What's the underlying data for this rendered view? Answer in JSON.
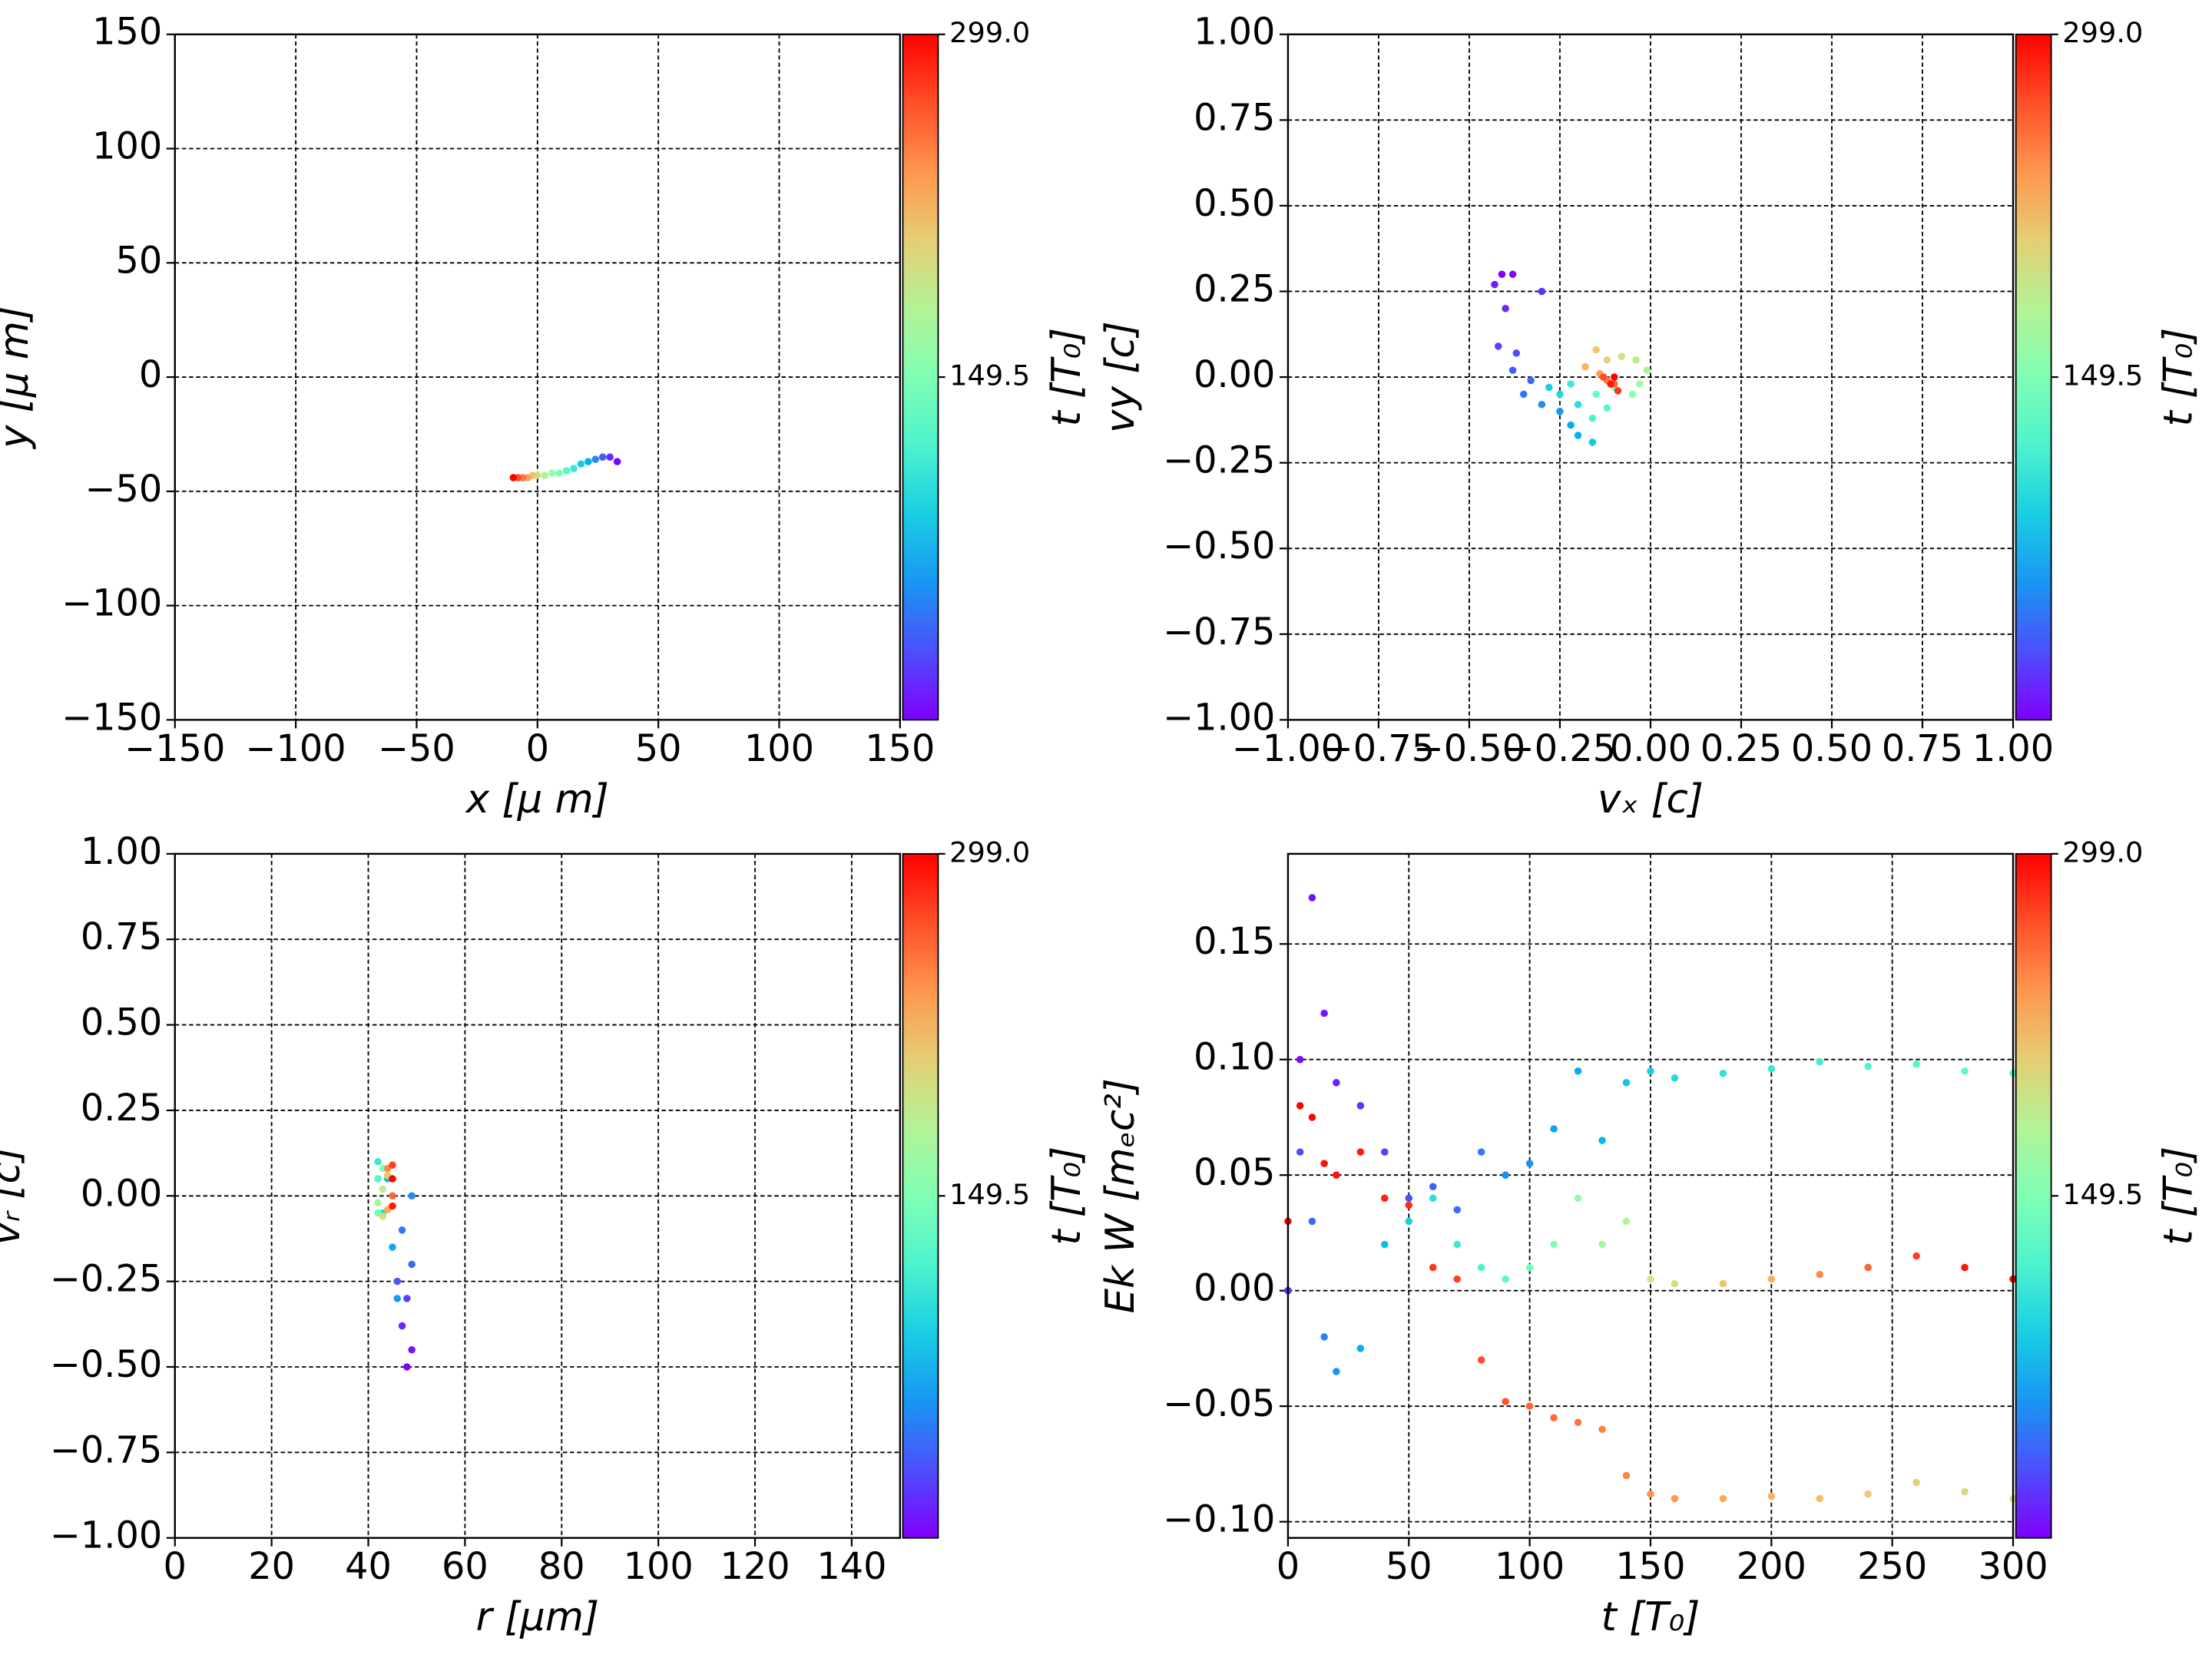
{
  "chart_data": [
    {
      "type": "scatter",
      "xlabel": "x  [μ m]",
      "ylabel": "y  [μ m]",
      "colorbar_label": "t [T₀]",
      "colormap": "rainbow",
      "grid": true,
      "xlim": [
        -150,
        150
      ],
      "ylim": [
        -150,
        150
      ],
      "xticks": [
        {
          "value": -150,
          "label": "−150"
        },
        {
          "value": -100,
          "label": "−100"
        },
        {
          "value": -50,
          "label": "−50"
        },
        0,
        50,
        100,
        150
      ],
      "yticks": [
        {
          "value": -150,
          "label": "−150"
        },
        {
          "value": -100,
          "label": "−100"
        },
        {
          "value": -50,
          "label": "−50"
        },
        0,
        50,
        100,
        150
      ],
      "clim": [
        0,
        299
      ],
      "colorbar_ticks": [
        149.5,
        {
          "value": 299,
          "label": "299.0"
        }
      ],
      "series": [
        {
          "x": [
            33,
            30,
            27,
            24,
            21,
            18,
            15,
            12,
            9,
            6,
            3,
            0,
            -2,
            -4,
            -6,
            -8,
            -10
          ],
          "values": [
            -37,
            -35,
            -35,
            -36,
            -37,
            -38,
            -40,
            -41,
            -42,
            -42,
            -43,
            -43,
            -43,
            -44,
            -44,
            -44,
            -44
          ],
          "c": [
            0,
            18,
            36,
            54,
            72,
            90,
            108,
            126,
            144,
            162,
            180,
            198,
            216,
            234,
            252,
            270,
            299
          ]
        }
      ]
    },
    {
      "type": "scatter",
      "xlabel": "vₓ [c]",
      "ylabel": "vy [c]",
      "colorbar_label": "t [T₀]",
      "colormap": "rainbow",
      "grid": true,
      "xlim": [
        -1,
        1
      ],
      "ylim": [
        -1,
        1
      ],
      "xticks": [
        {
          "value": -1,
          "label": "−1.00"
        },
        {
          "value": -0.75,
          "label": "−0.75"
        },
        {
          "value": -0.5,
          "label": "−0.50"
        },
        {
          "value": -0.25,
          "label": "−0.25"
        },
        {
          "value": 0,
          "label": "0.00"
        },
        {
          "value": 0.25,
          "label": "0.25"
        },
        {
          "value": 0.5,
          "label": "0.50"
        },
        {
          "value": 0.75,
          "label": "0.75"
        },
        {
          "value": 1,
          "label": "1.00"
        }
      ],
      "yticks": [
        {
          "value": -1,
          "label": "−1.00"
        },
        {
          "value": -0.75,
          "label": "−0.75"
        },
        {
          "value": -0.5,
          "label": "−0.50"
        },
        {
          "value": -0.25,
          "label": "−0.25"
        },
        {
          "value": 0,
          "label": "0.00"
        },
        {
          "value": 0.25,
          "label": "0.25"
        },
        {
          "value": 0.5,
          "label": "0.50"
        },
        {
          "value": 0.75,
          "label": "0.75"
        },
        {
          "value": 1,
          "label": "1.00"
        }
      ],
      "clim": [
        0,
        299
      ],
      "colorbar_ticks": [
        149.5,
        {
          "value": 299,
          "label": "299.0"
        }
      ],
      "series": [
        {
          "x": [
            -0.41,
            -0.38,
            -0.43,
            -0.4,
            -0.3,
            -0.42,
            -0.37,
            -0.38,
            -0.33,
            -0.35,
            -0.3,
            -0.25,
            -0.22,
            -0.2,
            -0.16,
            -0.28,
            -0.25,
            -0.2,
            -0.22,
            -0.16,
            -0.12,
            -0.15,
            -0.1,
            -0.05,
            -0.03,
            -0.01,
            -0.04,
            -0.08,
            -0.12,
            -0.15,
            -0.18,
            -0.14,
            -0.12,
            -0.1,
            -0.13,
            -0.09,
            -0.11,
            -0.1
          ],
          "values": [
            0.3,
            0.3,
            0.27,
            0.2,
            0.25,
            0.09,
            0.07,
            0.02,
            -0.01,
            -0.05,
            -0.08,
            -0.1,
            -0.14,
            -0.17,
            -0.19,
            -0.03,
            -0.05,
            -0.08,
            -0.02,
            -0.12,
            -0.09,
            -0.05,
            -0.03,
            -0.05,
            -0.02,
            0.02,
            0.05,
            0.06,
            0.05,
            0.08,
            0.03,
            0.01,
            -0.01,
            -0.02,
            0,
            -0.04,
            -0.02,
            0
          ],
          "c": [
            0,
            5,
            10,
            15,
            20,
            25,
            30,
            35,
            40,
            45,
            55,
            60,
            70,
            75,
            85,
            90,
            95,
            100,
            110,
            120,
            125,
            135,
            145,
            155,
            165,
            175,
            185,
            195,
            205,
            215,
            225,
            235,
            250,
            260,
            270,
            280,
            290,
            299
          ]
        }
      ]
    },
    {
      "type": "scatter",
      "xlabel": "r [μm]",
      "ylabel": "vᵣ [c]",
      "colorbar_label": "t [T₀]",
      "colormap": "rainbow",
      "grid": true,
      "xlim": [
        0,
        150
      ],
      "ylim": [
        -1,
        1
      ],
      "xticks": [
        0,
        20,
        40,
        60,
        80,
        100,
        120,
        140
      ],
      "yticks": [
        {
          "value": -1,
          "label": "−1.00"
        },
        {
          "value": -0.75,
          "label": "−0.75"
        },
        {
          "value": -0.5,
          "label": "−0.50"
        },
        {
          "value": -0.25,
          "label": "−0.25"
        },
        {
          "value": 0,
          "label": "0.00"
        },
        {
          "value": 0.25,
          "label": "0.25"
        },
        {
          "value": 0.5,
          "label": "0.50"
        },
        {
          "value": 0.75,
          "label": "0.75"
        },
        {
          "value": 1,
          "label": "1.00"
        }
      ],
      "clim": [
        0,
        299
      ],
      "colorbar_ticks": [
        149.5,
        {
          "value": 299,
          "label": "299.0"
        }
      ],
      "series": [
        {
          "x": [
            48,
            49,
            47,
            48,
            46,
            49,
            47,
            49,
            46,
            45,
            44,
            43,
            42,
            42,
            42,
            43,
            42,
            43,
            43,
            44,
            44,
            44,
            45,
            45,
            45,
            45
          ],
          "values": [
            -0.5,
            -0.45,
            -0.38,
            -0.3,
            -0.25,
            -0.2,
            -0.1,
            0,
            -0.3,
            -0.15,
            0.05,
            -0.05,
            0.1,
            0.05,
            -0.05,
            0.08,
            -0.02,
            0.02,
            -0.06,
            0.06,
            -0.04,
            0.08,
            0,
            0.09,
            -0.03,
            0.05
          ],
          "c": [
            0,
            8,
            16,
            24,
            32,
            40,
            48,
            56,
            64,
            72,
            80,
            95,
            110,
            125,
            140,
            155,
            170,
            185,
            200,
            215,
            230,
            245,
            260,
            275,
            290,
            299
          ]
        }
      ]
    },
    {
      "type": "scatter",
      "xlabel": "t [T₀]",
      "ylabel": "Ek W [mₑc²]",
      "colorbar_label": "t [T₀]",
      "colormap": "rainbow",
      "grid": true,
      "xlim": [
        0,
        300
      ],
      "ylim": [
        -0.107,
        0.189
      ],
      "xticks": [
        0,
        50,
        100,
        150,
        200,
        250,
        300
      ],
      "yticks": [
        {
          "value": -0.1,
          "label": "−0.10"
        },
        {
          "value": -0.05,
          "label": "−0.05"
        },
        {
          "value": 0,
          "label": "0.00"
        },
        {
          "value": 0.05,
          "label": "0.05"
        },
        {
          "value": 0.1,
          "label": "0.10"
        },
        {
          "value": 0.15,
          "label": "0.15"
        }
      ],
      "clim": [
        0,
        299
      ],
      "colorbar_ticks": [
        149.5,
        {
          "value": 299,
          "label": "299.0"
        }
      ],
      "series": [
        {
          "x": [
            0,
            5,
            10,
            15,
            20,
            30,
            40,
            50,
            60,
            70,
            80,
            90,
            100,
            110,
            120,
            130,
            140,
            150,
            160,
            180,
            200,
            220,
            240,
            260,
            280,
            300
          ],
          "values": [
            0,
            0.1,
            0.17,
            0.12,
            0.09,
            0.08,
            0.06,
            0.04,
            0.045,
            0.035,
            0.06,
            0.05,
            0.055,
            0.07,
            0.095,
            0.065,
            0.09,
            0.095,
            0.092,
            0.094,
            0.096,
            0.099,
            0.097,
            0.098,
            0.095,
            0.094
          ],
          "c": [
            0,
            3,
            6,
            9,
            12,
            18,
            24,
            30,
            36,
            42,
            48,
            54,
            60,
            66,
            72,
            78,
            84,
            90,
            96,
            102,
            108,
            114,
            120,
            125,
            128,
            130
          ]
        },
        {
          "x": [
            0,
            5,
            10,
            15,
            20,
            30,
            40,
            50,
            60,
            70,
            80,
            90,
            100,
            110,
            120,
            130,
            140,
            150,
            160,
            180,
            200,
            220,
            240,
            260,
            280,
            300
          ],
          "values": [
            0,
            0.06,
            0.03,
            -0.02,
            -0.035,
            -0.025,
            0.02,
            0.03,
            0.04,
            0.02,
            0.01,
            0.005,
            0.01,
            0.02,
            0.04,
            0.02,
            0.03,
            0.005,
            0.003,
            0.003,
            0.005,
            0.007,
            0.01,
            0.015,
            0.01,
            0.005
          ],
          "c": [
            20,
            30,
            40,
            50,
            60,
            70,
            80,
            90,
            100,
            110,
            120,
            130,
            140,
            150,
            160,
            170,
            180,
            190,
            200,
            215,
            230,
            245,
            260,
            275,
            290,
            299
          ]
        },
        {
          "x": [
            0,
            5,
            10,
            15,
            20,
            30,
            40,
            50,
            60,
            70,
            80,
            90,
            100,
            110,
            120,
            130,
            140,
            150,
            160,
            180,
            200,
            220,
            240,
            260,
            280,
            300
          ],
          "values": [
            0.03,
            0.08,
            0.075,
            0.055,
            0.05,
            0.06,
            0.04,
            0.037,
            0.01,
            0.005,
            -0.03,
            -0.048,
            -0.05,
            -0.055,
            -0.057,
            -0.06,
            -0.08,
            -0.088,
            -0.09,
            -0.09,
            -0.089,
            -0.09,
            -0.088,
            -0.083,
            -0.087,
            -0.09
          ],
          "c": [
            299,
            298,
            296,
            294,
            292,
            290,
            286,
            282,
            278,
            274,
            270,
            266,
            262,
            258,
            254,
            250,
            246,
            242,
            238,
            232,
            226,
            220,
            214,
            208,
            202,
            196
          ]
        }
      ]
    }
  ]
}
